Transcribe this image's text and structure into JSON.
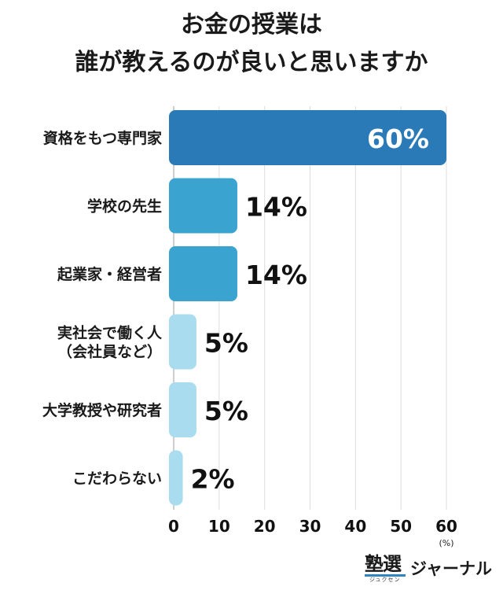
{
  "title_line1": "お金の授業は",
  "title_line2": "誰が教えるのが良いと思いますか",
  "brand": {
    "kanji": "塾選",
    "ruby": "ジュクセン",
    "name": "ジャーナル",
    "accent": "#2e86c1"
  },
  "chart_data": {
    "type": "bar",
    "orientation": "horizontal",
    "categories": [
      [
        "資格をもつ専門家"
      ],
      [
        "学校の先生"
      ],
      [
        "起業家・経営者"
      ],
      [
        "実社会で働く人",
        "（会社員など）"
      ],
      [
        "大学教授や研究者"
      ],
      [
        "こだわらない"
      ]
    ],
    "values": [
      60,
      14,
      14,
      5,
      5,
      2
    ],
    "data_labels": [
      "60%",
      "14%",
      "14%",
      "5%",
      "5%",
      "2%"
    ],
    "colors": [
      "#2a7ab8",
      "#3aa3cf",
      "#3aa3cf",
      "#a9dcef",
      "#a9dcef",
      "#a9dcef"
    ],
    "xlim": [
      0,
      60
    ],
    "xticks": [
      0,
      10,
      20,
      30,
      40,
      50,
      60
    ],
    "xunit": "(%)",
    "grid": true
  }
}
